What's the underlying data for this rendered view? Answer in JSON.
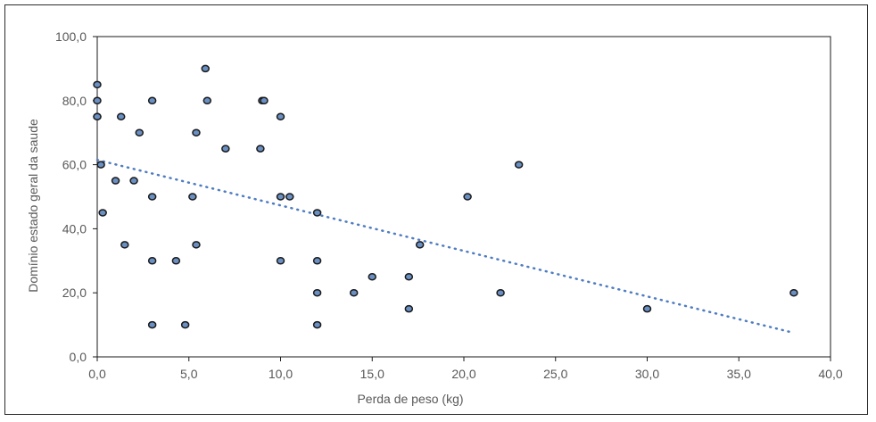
{
  "chart_data": {
    "type": "scatter",
    "title": "",
    "xlabel": "Perda de peso (kg)",
    "ylabel": "Domínio  estado geral da saude",
    "xlim": [
      0,
      40
    ],
    "ylim": [
      0,
      100
    ],
    "xticks": [
      0,
      5,
      10,
      15,
      20,
      25,
      30,
      35,
      40
    ],
    "yticks": [
      0,
      20,
      40,
      60,
      80,
      100
    ],
    "xtick_labels": [
      "0,0",
      "5,0",
      "10,0",
      "15,0",
      "20,0",
      "25,0",
      "30,0",
      "35,0",
      "40,0"
    ],
    "ytick_labels": [
      "0,0",
      "20,0",
      "40,0",
      "60,0",
      "80,0",
      "100,0"
    ],
    "grid": false,
    "legend": "none",
    "point_color": "#6a8fc3",
    "point_edge_color": "#1a1a1a",
    "trendline_color": "#4f7cc0",
    "trendline": {
      "type": "linear",
      "style": "dotted",
      "x": [
        0,
        38
      ],
      "y": [
        61.5,
        7.5
      ]
    },
    "points": [
      {
        "x": 0.0,
        "y": 85
      },
      {
        "x": 0.0,
        "y": 80
      },
      {
        "x": 0.0,
        "y": 75
      },
      {
        "x": 0.0,
        "y": 75
      },
      {
        "x": 0.2,
        "y": 60
      },
      {
        "x": 0.3,
        "y": 45
      },
      {
        "x": 1.0,
        "y": 55
      },
      {
        "x": 1.3,
        "y": 75
      },
      {
        "x": 1.5,
        "y": 35
      },
      {
        "x": 2.0,
        "y": 55
      },
      {
        "x": 2.3,
        "y": 70
      },
      {
        "x": 3.0,
        "y": 80
      },
      {
        "x": 3.0,
        "y": 50
      },
      {
        "x": 3.0,
        "y": 30
      },
      {
        "x": 3.0,
        "y": 10
      },
      {
        "x": 4.3,
        "y": 30
      },
      {
        "x": 4.8,
        "y": 10
      },
      {
        "x": 5.2,
        "y": 50
      },
      {
        "x": 5.4,
        "y": 70
      },
      {
        "x": 5.4,
        "y": 35
      },
      {
        "x": 5.9,
        "y": 90
      },
      {
        "x": 6.0,
        "y": 80
      },
      {
        "x": 7.0,
        "y": 65
      },
      {
        "x": 8.9,
        "y": 65
      },
      {
        "x": 9.0,
        "y": 80
      },
      {
        "x": 9.1,
        "y": 80
      },
      {
        "x": 10.0,
        "y": 75
      },
      {
        "x": 10.0,
        "y": 50
      },
      {
        "x": 10.0,
        "y": 30
      },
      {
        "x": 10.5,
        "y": 50
      },
      {
        "x": 12.0,
        "y": 45
      },
      {
        "x": 12.0,
        "y": 30
      },
      {
        "x": 12.0,
        "y": 20
      },
      {
        "x": 12.0,
        "y": 10
      },
      {
        "x": 14.0,
        "y": 20
      },
      {
        "x": 15.0,
        "y": 25
      },
      {
        "x": 17.0,
        "y": 25
      },
      {
        "x": 17.0,
        "y": 15
      },
      {
        "x": 17.6,
        "y": 35
      },
      {
        "x": 20.2,
        "y": 50
      },
      {
        "x": 22.0,
        "y": 20
      },
      {
        "x": 23.0,
        "y": 60
      },
      {
        "x": 30.0,
        "y": 15
      },
      {
        "x": 38.0,
        "y": 20
      }
    ]
  }
}
